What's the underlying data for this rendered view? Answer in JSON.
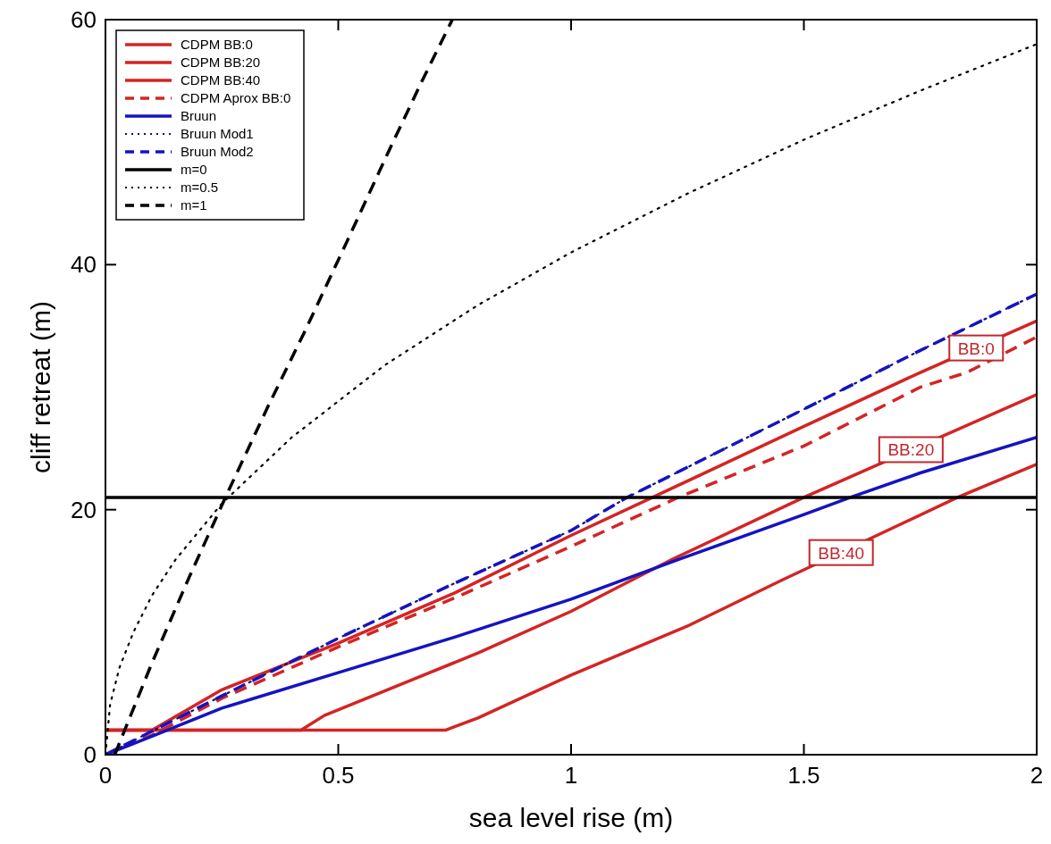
{
  "chart_data": {
    "type": "line",
    "xlabel": "sea level rise (m)",
    "ylabel": "cliff retreat (m)",
    "xlim": [
      0,
      2
    ],
    "ylim": [
      0,
      60
    ],
    "xticks": [
      0,
      0.5,
      1,
      1.5,
      2
    ],
    "yticks": [
      0,
      20,
      40,
      60
    ],
    "grid": false,
    "legend": "top left",
    "marker": "none",
    "series": [
      {
        "name": "CDPM BB:0",
        "color": "#d42424",
        "line_style": "solid",
        "x": [
          0,
          0.1,
          0.25,
          0.5,
          0.75,
          1,
          1.175,
          1.5,
          1.75,
          2
        ],
        "values": [
          2,
          2,
          5.3,
          9.1,
          13.2,
          17.9,
          21,
          26.8,
          31.2,
          35.4
        ]
      },
      {
        "name": "CDPM BB:20",
        "color": "#d42424",
        "line_style": "solid",
        "x": [
          0,
          0.42,
          0.47,
          0.8,
          1,
          1.22,
          1.5,
          2
        ],
        "values": [
          2,
          2,
          3.2,
          8.3,
          11.7,
          16,
          21,
          29.4
        ]
      },
      {
        "name": "CDPM BB:40",
        "color": "#d42424",
        "line_style": "solid",
        "x": [
          0,
          0.73,
          0.8,
          1,
          1.25,
          1.45,
          1.83,
          2
        ],
        "values": [
          2,
          2,
          3,
          6.5,
          10.5,
          14.2,
          21,
          23.7
        ]
      },
      {
        "name": "CDPM Aprox BB:0",
        "color": "#d42424",
        "line_style": "dashed",
        "x": [
          0,
          0.1,
          0.25,
          0.5,
          0.75,
          1,
          1.23,
          1.5,
          1.75,
          1.85,
          2
        ],
        "values": [
          0,
          1.6,
          4.6,
          8.8,
          12.8,
          17,
          21,
          25.2,
          30,
          31.2,
          34.1
        ]
      },
      {
        "name": "Bruun",
        "color": "#1414c0",
        "line_style": "solid",
        "x": [
          0,
          0.1,
          0.25,
          0.5,
          0.75,
          1,
          1.25,
          1.5,
          1.6,
          1.75,
          2
        ],
        "values": [
          0,
          1.5,
          3.8,
          6.7,
          9.6,
          12.7,
          16.2,
          19.6,
          21,
          23,
          25.9
        ]
      },
      {
        "name": "Bruun Mod1",
        "color": "#10107a",
        "line_style": "dotted",
        "x": [
          0,
          0.25,
          0.5,
          0.75,
          1,
          1.12,
          1.5,
          1.75,
          2
        ],
        "values": [
          0,
          4.8,
          9.5,
          14,
          18.3,
          21,
          28.2,
          33,
          37.6
        ]
      },
      {
        "name": "Bruun Mod2",
        "color": "#1414c0",
        "line_style": "dashed",
        "x": [
          0,
          0.25,
          0.5,
          0.75,
          1,
          1.12,
          1.5,
          1.75,
          2
        ],
        "values": [
          0,
          4.8,
          9.5,
          14,
          18.3,
          21,
          28.2,
          33,
          37.6
        ]
      },
      {
        "name": "m=0",
        "color": "#000000",
        "line_style": "solid",
        "x": [
          0,
          2
        ],
        "values": [
          21,
          21
        ]
      },
      {
        "name": "m=0.5",
        "color": "#000000",
        "line_style": "dotted",
        "x": [
          0,
          0.01,
          0.03,
          0.06,
          0.1,
          0.15,
          0.25,
          0.4,
          0.6,
          0.8,
          1,
          1.25,
          1.5,
          1.75,
          2
        ],
        "values": [
          0,
          4.1,
          7.1,
          10,
          13,
          15.9,
          20.5,
          25.9,
          31.8,
          36.7,
          41,
          45.8,
          50.2,
          54.2,
          58
        ]
      },
      {
        "name": "m=1",
        "color": "#000000",
        "line_style": "dashed",
        "x": [
          0.02,
          0.1,
          0.18,
          0.26,
          0.35,
          0.43,
          0.52,
          0.61,
          0.68,
          0.745
        ],
        "values": [
          0,
          7.5,
          14.5,
          21.2,
          28.5,
          34.7,
          42,
          49.4,
          55,
          60
        ]
      }
    ],
    "annotations": [
      {
        "text": "BB:0",
        "x": 1.87,
        "y": 33.2
      },
      {
        "text": "BB:20",
        "x": 1.73,
        "y": 24.9
      },
      {
        "text": "BB:40",
        "x": 1.58,
        "y": 16.5
      }
    ]
  }
}
